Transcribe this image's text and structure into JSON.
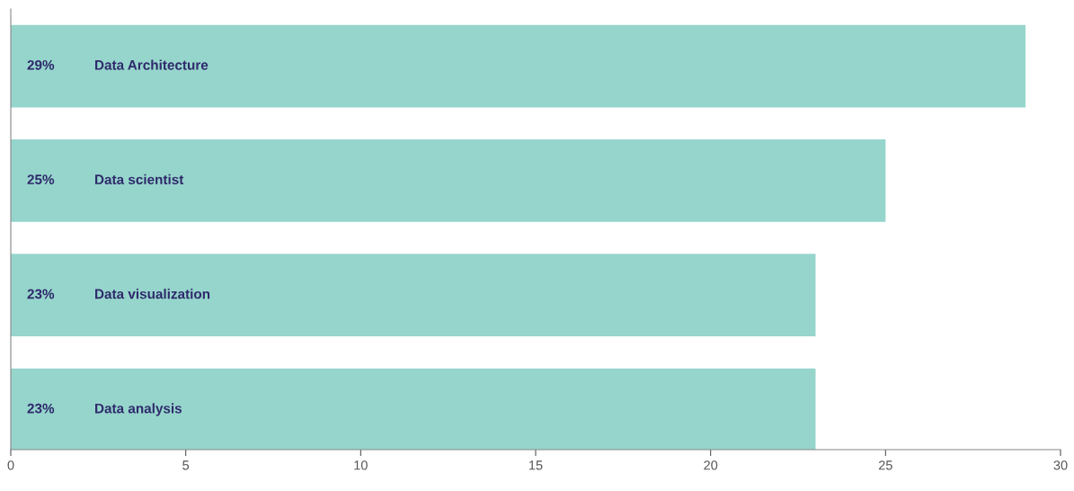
{
  "chart_data": {
    "type": "bar",
    "orientation": "horizontal",
    "categories": [
      "Data Architecture",
      "Data scientist",
      "Data visualization",
      "Data analysis"
    ],
    "values": [
      29,
      25,
      23,
      23
    ],
    "value_labels": [
      "29%",
      "25%",
      "23%",
      "23%"
    ],
    "color": "#96d5cc",
    "xlim": [
      0,
      30
    ],
    "xticks": [
      0,
      5,
      10,
      15,
      20,
      25,
      30
    ],
    "grid": false,
    "legend": false
  }
}
